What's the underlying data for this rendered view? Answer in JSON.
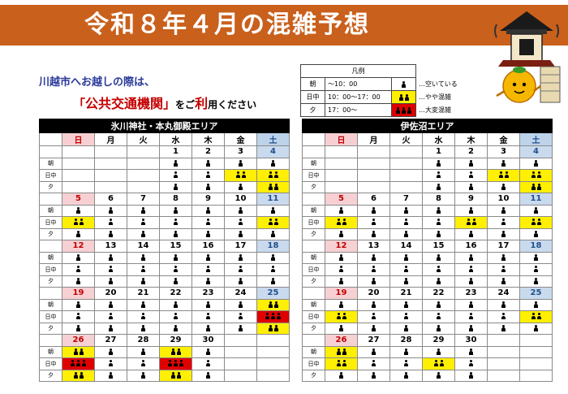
{
  "title": "令和８年４月の混雑予想",
  "intro": {
    "line1": "川越市へお越しの際は、",
    "line2_open": "「",
    "line2_key": "公共交通機関",
    "line2_close": "」",
    "line2_mid": "をご",
    "line2_emph": "利",
    "line2_end": "用ください"
  },
  "legend": {
    "title": "凡例",
    "rows": [
      {
        "key": "朝",
        "time": "～10：00",
        "level": 1,
        "desc": "…空いている"
      },
      {
        "key": "日中",
        "time": "10：00～17：00",
        "level": 2,
        "desc": "…やや混雑"
      },
      {
        "key": "夕",
        "time": "17：00～",
        "level": 3,
        "desc": "…大変混雑"
      }
    ]
  },
  "colors": {
    "banner": "#c9601c",
    "level1": "#ffffff",
    "level2": "#ffef00",
    "level3": "#e00000"
  },
  "period_labels": [
    "朝",
    "日中",
    "夕"
  ],
  "weekdays": [
    "日",
    "月",
    "火",
    "水",
    "木",
    "金",
    "土"
  ],
  "calendars": [
    {
      "name": "氷川神社・本丸御殿エリア",
      "weeks": [
        {
          "dates": [
            "",
            "",
            "",
            "1",
            "2",
            "3",
            "4"
          ],
          "levels": [
            [
              0,
              0,
              0,
              1,
              1,
              1,
              1
            ],
            [
              0,
              0,
              0,
              1,
              1,
              2,
              2
            ],
            [
              0,
              0,
              0,
              1,
              1,
              1,
              2
            ]
          ]
        },
        {
          "dates": [
            "5",
            "6",
            "7",
            "8",
            "9",
            "10",
            "11"
          ],
          "levels": [
            [
              1,
              1,
              1,
              1,
              1,
              1,
              1
            ],
            [
              2,
              1,
              1,
              1,
              1,
              1,
              2
            ],
            [
              1,
              1,
              1,
              1,
              1,
              1,
              1
            ]
          ]
        },
        {
          "dates": [
            "12",
            "13",
            "14",
            "15",
            "16",
            "17",
            "18"
          ],
          "levels": [
            [
              1,
              1,
              1,
              1,
              1,
              1,
              1
            ],
            [
              1,
              1,
              1,
              1,
              1,
              1,
              1
            ],
            [
              1,
              1,
              1,
              1,
              1,
              1,
              1
            ]
          ]
        },
        {
          "dates": [
            "19",
            "20",
            "21",
            "22",
            "23",
            "24",
            "25"
          ],
          "levels": [
            [
              1,
              1,
              1,
              1,
              1,
              1,
              2
            ],
            [
              1,
              1,
              1,
              1,
              1,
              1,
              3
            ],
            [
              1,
              1,
              1,
              1,
              1,
              1,
              2
            ]
          ]
        },
        {
          "dates": [
            "26",
            "27",
            "28",
            "29",
            "30",
            "",
            ""
          ],
          "levels": [
            [
              2,
              1,
              1,
              2,
              1,
              0,
              0
            ],
            [
              3,
              1,
              1,
              3,
              1,
              0,
              0
            ],
            [
              2,
              1,
              1,
              2,
              1,
              0,
              0
            ]
          ]
        }
      ]
    },
    {
      "name": "伊佐沼エリア",
      "weeks": [
        {
          "dates": [
            "",
            "",
            "",
            "1",
            "2",
            "3",
            "4"
          ],
          "levels": [
            [
              0,
              0,
              0,
              1,
              1,
              1,
              1
            ],
            [
              0,
              0,
              0,
              1,
              1,
              2,
              2
            ],
            [
              0,
              0,
              0,
              1,
              1,
              1,
              2
            ]
          ]
        },
        {
          "dates": [
            "5",
            "6",
            "7",
            "8",
            "9",
            "10",
            "11"
          ],
          "levels": [
            [
              1,
              1,
              1,
              1,
              1,
              1,
              1
            ],
            [
              2,
              1,
              1,
              1,
              2,
              1,
              2
            ],
            [
              1,
              1,
              1,
              1,
              1,
              1,
              1
            ]
          ]
        },
        {
          "dates": [
            "12",
            "13",
            "14",
            "15",
            "16",
            "17",
            "18"
          ],
          "levels": [
            [
              1,
              1,
              1,
              1,
              1,
              1,
              1
            ],
            [
              1,
              1,
              1,
              1,
              1,
              1,
              1
            ],
            [
              1,
              1,
              1,
              1,
              1,
              1,
              1
            ]
          ]
        },
        {
          "dates": [
            "19",
            "20",
            "21",
            "22",
            "23",
            "24",
            "25"
          ],
          "levels": [
            [
              1,
              1,
              1,
              1,
              1,
              1,
              1
            ],
            [
              2,
              1,
              1,
              1,
              1,
              1,
              2
            ],
            [
              1,
              1,
              1,
              1,
              1,
              1,
              1
            ]
          ]
        },
        {
          "dates": [
            "26",
            "27",
            "28",
            "29",
            "30",
            "",
            ""
          ],
          "levels": [
            [
              2,
              1,
              1,
              1,
              1,
              0,
              0
            ],
            [
              2,
              1,
              1,
              2,
              1,
              0,
              0
            ],
            [
              1,
              1,
              1,
              1,
              1,
              0,
              0
            ]
          ]
        }
      ]
    }
  ]
}
